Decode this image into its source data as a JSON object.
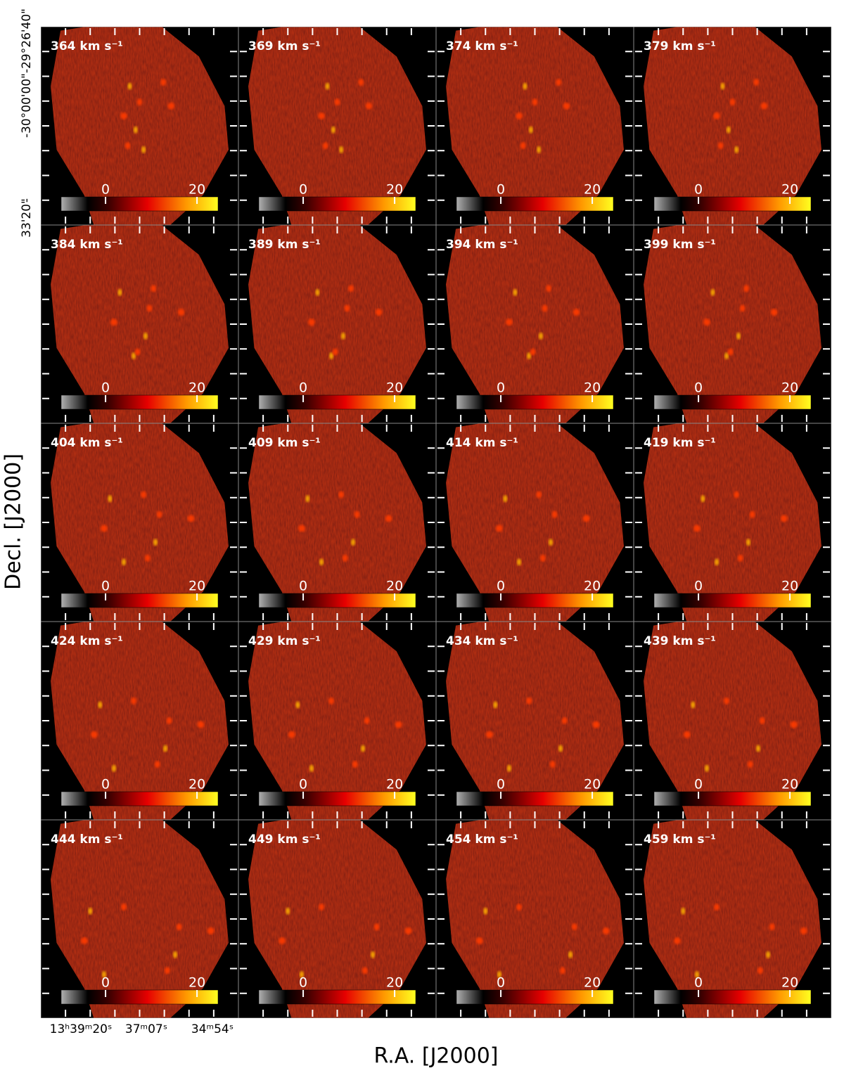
{
  "figure": {
    "panels": [
      {
        "label": "364 km s⁻¹"
      },
      {
        "label": "369 km s⁻¹"
      },
      {
        "label": "374 km s⁻¹"
      },
      {
        "label": "379 km s⁻¹"
      },
      {
        "label": "384 km s⁻¹"
      },
      {
        "label": "389 km s⁻¹"
      },
      {
        "label": "394 km s⁻¹"
      },
      {
        "label": "399 km s⁻¹"
      },
      {
        "label": "404 km s⁻¹"
      },
      {
        "label": "409 km s⁻¹"
      },
      {
        "label": "414 km s⁻¹"
      },
      {
        "label": "419 km s⁻¹"
      },
      {
        "label": "424 km s⁻¹"
      },
      {
        "label": "429 km s⁻¹"
      },
      {
        "label": "434 km s⁻¹"
      },
      {
        "label": "439 km s⁻¹"
      },
      {
        "label": "444 km s⁻¹"
      },
      {
        "label": "449 km s⁻¹"
      },
      {
        "label": "454 km s⁻¹"
      },
      {
        "label": "459 km s⁻¹"
      }
    ],
    "colorbar": {
      "lim": [
        -9.7,
        24.6
      ],
      "ticks": [
        0,
        20
      ]
    },
    "ylabel": "Decl. [J2000]",
    "xlabel": "R.A. [J2000]",
    "yticklabels": [
      "-29°26'40\"",
      "-30°00'00\"",
      "-",
      "33'20\""
    ],
    "xticklabels": [
      "13ʰ39ᵐ20ˢ",
      "37ᵐ07ˢ",
      "34ᵐ54ˢ"
    ]
  }
}
